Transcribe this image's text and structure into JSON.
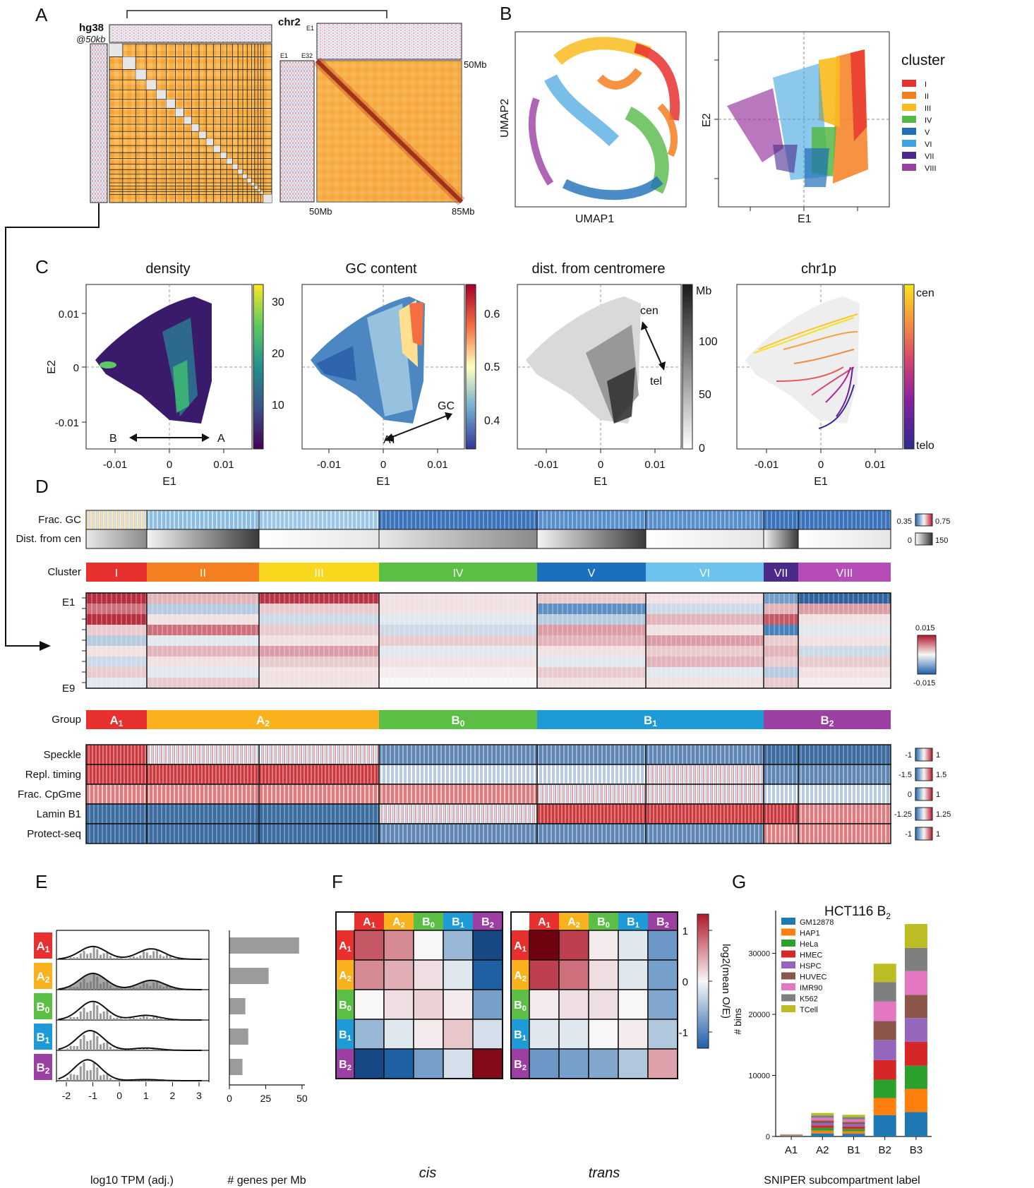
{
  "panel_letters": [
    "A",
    "B",
    "C",
    "D",
    "E",
    "F",
    "G"
  ],
  "panelA": {
    "genome_label": "hg38",
    "res_label": "@50kb",
    "chr_label": "chr2",
    "e1": "E1",
    "e1b": "E1",
    "e32": "E32",
    "start_right": "50Mb",
    "start_bottom": "50Mb",
    "end_bottom": "85Mb"
  },
  "panelB": {
    "umap_x": "UMAP1",
    "umap_y": "UMAP2",
    "pca_x": "E1",
    "pca_y": "E2",
    "legend_title": "cluster",
    "clusters": [
      {
        "label": "I",
        "color": "#e8312f"
      },
      {
        "label": "II",
        "color": "#f47f20"
      },
      {
        "label": "III",
        "color": "#f9bb1d"
      },
      {
        "label": "IV",
        "color": "#55b947"
      },
      {
        "label": "V",
        "color": "#1f6fb8"
      },
      {
        "label": "VI",
        "color": "#3fa3e0"
      },
      {
        "label": "VII",
        "color": "#4a2a8a"
      },
      {
        "label": "VIII",
        "color": "#9b3fa3"
      }
    ]
  },
  "panelC": {
    "titles": [
      "density",
      "GC content",
      "dist. from centromere",
      "chr1p"
    ],
    "xlabel": "E1",
    "ylabel": "E2",
    "xticks": [
      "-0.01",
      "0",
      "0.01"
    ],
    "yticks": [
      "0.01",
      "0",
      "-0.01"
    ],
    "density_ticks": [
      "30",
      "20",
      "10"
    ],
    "gc_ticks": [
      "0.6",
      "0.5",
      "0.4"
    ],
    "dist_unit": "Mb",
    "dist_ticks": [
      "100",
      "50",
      "0"
    ],
    "chr1p_top": "cen",
    "chr1p_bottom": "telo",
    "arrow_b": "B",
    "arrow_a": "A",
    "arrow_gc": "GC",
    "arrow_at": "AT",
    "arrow_cen": "cen",
    "arrow_tel": "tel"
  },
  "panelD": {
    "row_labels": [
      "Frac. GC",
      "Dist. from cen",
      "Cluster",
      "E1",
      "E9",
      "Group",
      "Speckle",
      "Repl. timing",
      "Frac. CpGme",
      "Lamin B1",
      "Protect-seq"
    ],
    "scale_gc": [
      "0.35",
      "0.75"
    ],
    "scale_dist": [
      "0",
      "150"
    ],
    "scale_eig": [
      "0.015",
      "-0.015"
    ],
    "scale_speckle": [
      "-1",
      "1"
    ],
    "scale_repl": [
      "-1.5",
      "1.5"
    ],
    "scale_cpg": [
      "0",
      "1"
    ],
    "scale_lamin": [
      "-1.25",
      "1.25"
    ],
    "scale_protect": [
      "-1",
      "1"
    ],
    "clusters": [
      "I",
      "II",
      "III",
      "IV",
      "V",
      "VI",
      "VII",
      "VIII"
    ],
    "groups": [
      {
        "label": "A",
        "sub": "1",
        "color": "#e8312f"
      },
      {
        "label": "A",
        "sub": "2",
        "color": "#f9b21d"
      },
      {
        "label": "B",
        "sub": "0",
        "color": "#5cbf45"
      },
      {
        "label": "B",
        "sub": "1",
        "color": "#1e9ad6"
      },
      {
        "label": "B",
        "sub": "2",
        "color": "#9b3fa3"
      }
    ]
  },
  "panelE": {
    "xlabel": "log10 TPM (adj.)",
    "xticks": [
      "-2",
      "-1",
      "0",
      "1",
      "2",
      "3"
    ],
    "bar_xlabel": "# genes per Mb",
    "bar_xticks": [
      "0",
      "25",
      "50"
    ]
  },
  "panelF": {
    "cis_label": "cis",
    "trans_label": "trans",
    "cbar_label": "log2(mean O/E)",
    "cbar_ticks": [
      "1",
      "0",
      "-1"
    ]
  },
  "panelG": {
    "title": "HCT116 B",
    "title_sub": "2",
    "ylabel": "# bins",
    "xlabel": "SNIPER subcompartment label",
    "yticks": [
      "30000",
      "20000",
      "10000",
      "0"
    ]
  },
  "chart_data": [
    {
      "type": "heatmap",
      "title": "cis",
      "rows": [
        "A1",
        "A2",
        "B0",
        "B1",
        "B2"
      ],
      "cols": [
        "A1",
        "A2",
        "B0",
        "B1",
        "B2"
      ],
      "values": [
        [
          0.65,
          0.45,
          0.0,
          -0.4,
          -1.1
        ],
        [
          0.45,
          0.3,
          0.1,
          -0.1,
          -0.95
        ],
        [
          0.0,
          0.1,
          0.15,
          0.05,
          -0.55
        ],
        [
          -0.4,
          -0.1,
          0.05,
          0.2,
          -0.15
        ],
        [
          -1.1,
          -0.95,
          -0.55,
          -0.15,
          1.15
        ]
      ],
      "zlim": [
        -1.3,
        1.3
      ]
    },
    {
      "type": "heatmap",
      "title": "trans",
      "rows": [
        "A1",
        "A2",
        "B0",
        "B1",
        "B2"
      ],
      "cols": [
        "A1",
        "A2",
        "B0",
        "B1",
        "B2"
      ],
      "values": [
        [
          1.25,
          0.75,
          0.05,
          -0.1,
          -0.6
        ],
        [
          0.75,
          0.55,
          0.1,
          -0.1,
          -0.55
        ],
        [
          0.05,
          0.1,
          0.1,
          0.0,
          -0.5
        ],
        [
          -0.1,
          -0.1,
          0.0,
          0.05,
          -0.3
        ],
        [
          -0.6,
          -0.55,
          -0.5,
          -0.3,
          0.35
        ]
      ],
      "zlim": [
        -1.3,
        1.3
      ]
    },
    {
      "type": "bar",
      "title": "HCT116 B2",
      "categories": [
        "A1",
        "A2",
        "B1",
        "B2",
        "B3"
      ],
      "series": [
        {
          "name": "GM12878",
          "color": "#1f77b4",
          "values": [
            50,
            500,
            450,
            3500,
            4000
          ]
        },
        {
          "name": "HAP1",
          "color": "#ff7f0e",
          "values": [
            40,
            450,
            400,
            2800,
            3800
          ]
        },
        {
          "name": "HeLa",
          "color": "#2ca02c",
          "values": [
            40,
            450,
            400,
            3000,
            3800
          ]
        },
        {
          "name": "HMEC",
          "color": "#d62728",
          "values": [
            40,
            400,
            380,
            3200,
            3900
          ]
        },
        {
          "name": "HSPC",
          "color": "#9467bd",
          "values": [
            40,
            400,
            380,
            3300,
            3900
          ]
        },
        {
          "name": "HUVEC",
          "color": "#8c564b",
          "values": [
            40,
            400,
            380,
            3100,
            3800
          ]
        },
        {
          "name": "IMR90",
          "color": "#e377c2",
          "values": [
            40,
            450,
            400,
            3200,
            3900
          ]
        },
        {
          "name": "K562",
          "color": "#7f7f7f",
          "values": [
            40,
            400,
            380,
            3200,
            3800
          ]
        },
        {
          "name": "TCell",
          "color": "#bcbd22",
          "values": [
            40,
            400,
            380,
            3000,
            3900
          ]
        }
      ],
      "ylabel": "# bins",
      "xlabel": "SNIPER subcompartment label",
      "ylim": [
        0,
        37000
      ]
    },
    {
      "type": "bar",
      "title": "",
      "categories": [
        "A1",
        "A2",
        "B0",
        "B1",
        "B2"
      ],
      "values": [
        48,
        27,
        11,
        13,
        9
      ],
      "xlabel": "# genes per Mb",
      "xlim": [
        0,
        52
      ]
    }
  ]
}
